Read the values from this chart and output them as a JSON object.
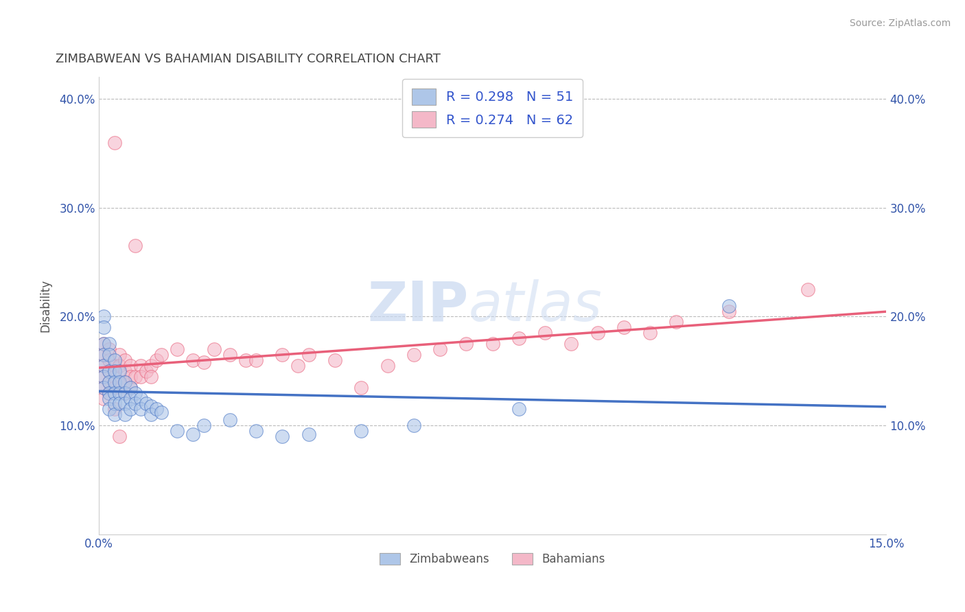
{
  "title": "ZIMBABWEAN VS BAHAMIAN DISABILITY CORRELATION CHART",
  "source": "Source: ZipAtlas.com",
  "ylabel": "Disability",
  "xlabel": "",
  "xlim": [
    0.0,
    0.15
  ],
  "ylim": [
    0.0,
    0.42
  ],
  "y_ticks": [
    0.1,
    0.2,
    0.3,
    0.4
  ],
  "y_tick_labels": [
    "10.0%",
    "20.0%",
    "30.0%",
    "40.0%"
  ],
  "legend_r1": "R = 0.298",
  "legend_n1": "N = 51",
  "legend_r2": "R = 0.274",
  "legend_n2": "N = 62",
  "color_zim": "#aec6e8",
  "color_bah": "#f4b8c8",
  "line_color_zim": "#4472c4",
  "line_color_bah": "#e8607a",
  "watermark_zip": "ZIP",
  "watermark_atlas": "atlas",
  "zim_scatter_x": [
    0.001,
    0.001,
    0.001,
    0.001,
    0.001,
    0.001,
    0.001,
    0.002,
    0.002,
    0.002,
    0.002,
    0.002,
    0.002,
    0.002,
    0.003,
    0.003,
    0.003,
    0.003,
    0.003,
    0.003,
    0.004,
    0.004,
    0.004,
    0.004,
    0.005,
    0.005,
    0.005,
    0.005,
    0.006,
    0.006,
    0.006,
    0.007,
    0.007,
    0.008,
    0.008,
    0.009,
    0.01,
    0.01,
    0.011,
    0.012,
    0.015,
    0.018,
    0.02,
    0.025,
    0.03,
    0.035,
    0.04,
    0.05,
    0.06,
    0.08,
    0.12
  ],
  "zim_scatter_y": [
    0.2,
    0.19,
    0.175,
    0.165,
    0.155,
    0.145,
    0.135,
    0.175,
    0.165,
    0.15,
    0.14,
    0.13,
    0.125,
    0.115,
    0.16,
    0.15,
    0.14,
    0.13,
    0.12,
    0.11,
    0.15,
    0.14,
    0.13,
    0.12,
    0.14,
    0.13,
    0.12,
    0.11,
    0.135,
    0.125,
    0.115,
    0.13,
    0.12,
    0.125,
    0.115,
    0.12,
    0.118,
    0.11,
    0.115,
    0.112,
    0.095,
    0.092,
    0.1,
    0.105,
    0.095,
    0.09,
    0.092,
    0.095,
    0.1,
    0.115,
    0.21
  ],
  "bah_scatter_x": [
    0.001,
    0.001,
    0.001,
    0.001,
    0.001,
    0.001,
    0.002,
    0.002,
    0.002,
    0.002,
    0.002,
    0.003,
    0.003,
    0.003,
    0.003,
    0.004,
    0.004,
    0.004,
    0.005,
    0.005,
    0.005,
    0.005,
    0.006,
    0.006,
    0.006,
    0.007,
    0.007,
    0.008,
    0.008,
    0.009,
    0.01,
    0.01,
    0.011,
    0.012,
    0.015,
    0.018,
    0.02,
    0.022,
    0.025,
    0.028,
    0.03,
    0.035,
    0.038,
    0.04,
    0.045,
    0.05,
    0.055,
    0.06,
    0.065,
    0.07,
    0.075,
    0.08,
    0.085,
    0.09,
    0.095,
    0.1,
    0.105,
    0.11,
    0.12,
    0.135,
    0.003,
    0.004
  ],
  "bah_scatter_y": [
    0.175,
    0.165,
    0.155,
    0.145,
    0.135,
    0.125,
    0.17,
    0.16,
    0.15,
    0.14,
    0.13,
    0.36,
    0.155,
    0.145,
    0.135,
    0.165,
    0.155,
    0.14,
    0.16,
    0.15,
    0.14,
    0.13,
    0.155,
    0.145,
    0.135,
    0.265,
    0.145,
    0.155,
    0.145,
    0.15,
    0.155,
    0.145,
    0.16,
    0.165,
    0.17,
    0.16,
    0.158,
    0.17,
    0.165,
    0.16,
    0.16,
    0.165,
    0.155,
    0.165,
    0.16,
    0.135,
    0.155,
    0.165,
    0.17,
    0.175,
    0.175,
    0.18,
    0.185,
    0.175,
    0.185,
    0.19,
    0.185,
    0.195,
    0.205,
    0.225,
    0.115,
    0.09
  ]
}
